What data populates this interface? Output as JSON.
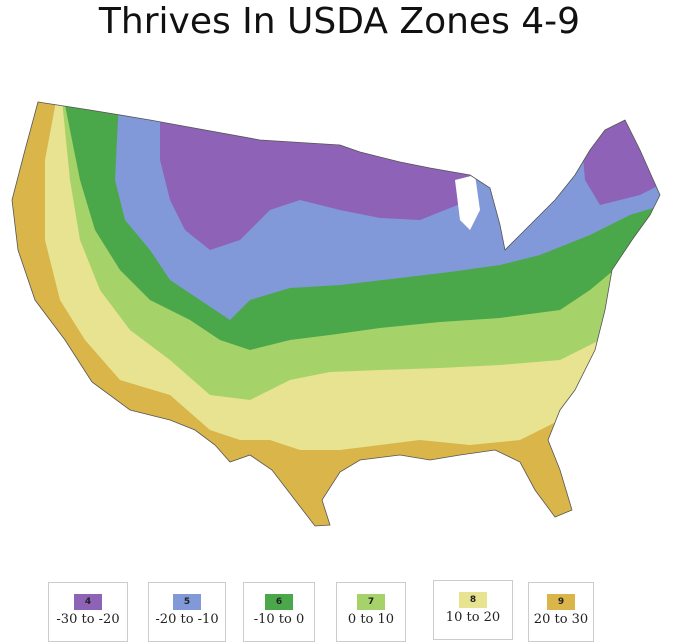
{
  "title": "Thrives In USDA Zones 4-9",
  "legend": [
    {
      "zone": "4",
      "range": "-30 to -20",
      "color": "#8e62b7"
    },
    {
      "zone": "5",
      "range": "-20 to -10",
      "color": "#8198d9"
    },
    {
      "zone": "6",
      "range": "-10 to 0",
      "color": "#4aa84a"
    },
    {
      "zone": "7",
      "range": "0 to 10",
      "color": "#a6d26a"
    },
    {
      "zone": "8",
      "range": "10 to 20",
      "color": "#e8e390"
    },
    {
      "zone": "9",
      "range": "20 to 30",
      "color": "#d9b54a"
    }
  ]
}
